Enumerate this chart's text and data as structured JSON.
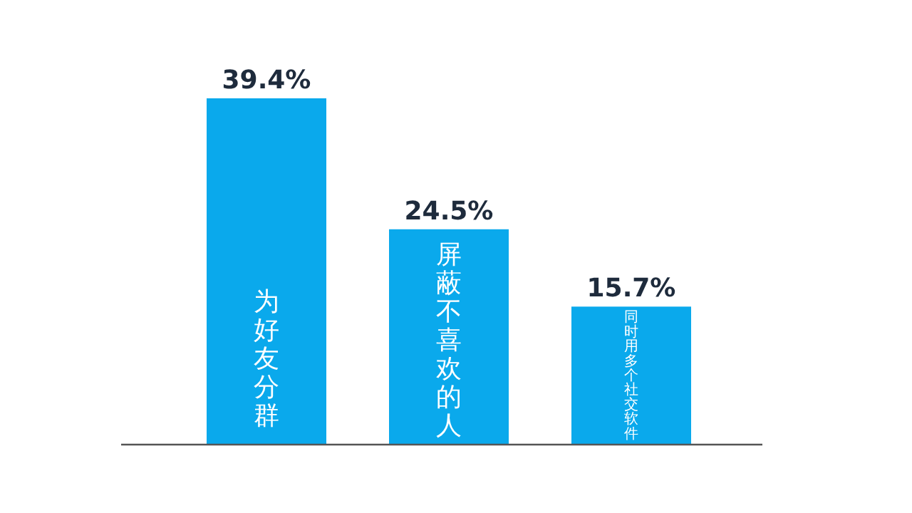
{
  "chart_data": {
    "type": "bar",
    "categories": [
      "为好友分群",
      "屏蔽不喜欢的人",
      "同时用多个社交软件"
    ],
    "values": [
      39.4,
      24.5,
      15.7
    ],
    "value_labels": [
      "39.4%",
      "24.5%",
      "15.7%"
    ],
    "color": "#0aa9ec"
  }
}
